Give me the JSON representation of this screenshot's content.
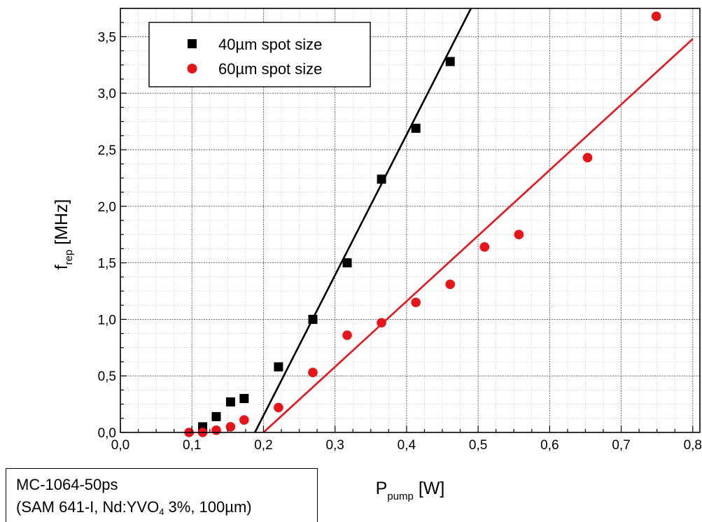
{
  "chart_data": {
    "type": "scatter",
    "xlabel_main": "P",
    "xlabel_sub": "pump",
    "xlabel_unit": " [W]",
    "ylabel_main": "f",
    "ylabel_sub": "rep",
    "ylabel_unit": " [MHz]",
    "xlim": [
      0.0,
      0.81
    ],
    "ylim": [
      0.0,
      3.75
    ],
    "xticks": [
      "0,0",
      "0,1",
      "0,2",
      "0,3",
      "0,4",
      "0,5",
      "0,6",
      "0,7",
      "0,8"
    ],
    "yticks": [
      "0,0",
      "0,5",
      "1,0",
      "1,5",
      "2,0",
      "2,5",
      "3,0",
      "3,5"
    ],
    "grid": true,
    "legend_position": "top-left",
    "series": [
      {
        "name": "40µm spot size",
        "color": "#000000",
        "marker": "square",
        "points": [
          {
            "x": 0.115,
            "y": 0.05
          },
          {
            "x": 0.134,
            "y": 0.14
          },
          {
            "x": 0.154,
            "y": 0.27
          },
          {
            "x": 0.173,
            "y": 0.3
          },
          {
            "x": 0.221,
            "y": 0.58
          },
          {
            "x": 0.269,
            "y": 1.0
          },
          {
            "x": 0.317,
            "y": 1.5
          },
          {
            "x": 0.365,
            "y": 2.24
          },
          {
            "x": 0.413,
            "y": 2.69
          },
          {
            "x": 0.461,
            "y": 3.28
          }
        ],
        "fit": {
          "x": [
            0.188,
            0.49
          ],
          "y": [
            0.0,
            3.75
          ]
        }
      },
      {
        "name": "60µm spot size",
        "color": "#e8141a",
        "marker": "circle",
        "points": [
          {
            "x": 0.096,
            "y": 0.0
          },
          {
            "x": 0.115,
            "y": 0.0
          },
          {
            "x": 0.134,
            "y": 0.02
          },
          {
            "x": 0.154,
            "y": 0.05
          },
          {
            "x": 0.173,
            "y": 0.11
          },
          {
            "x": 0.221,
            "y": 0.22
          },
          {
            "x": 0.269,
            "y": 0.53
          },
          {
            "x": 0.317,
            "y": 0.86
          },
          {
            "x": 0.365,
            "y": 0.97
          },
          {
            "x": 0.413,
            "y": 1.15
          },
          {
            "x": 0.461,
            "y": 1.31
          },
          {
            "x": 0.509,
            "y": 1.64
          },
          {
            "x": 0.557,
            "y": 1.75
          },
          {
            "x": 0.653,
            "y": 2.43
          },
          {
            "x": 0.749,
            "y": 3.68
          }
        ],
        "fit": {
          "x": [
            0.2,
            0.8
          ],
          "y": [
            0.0,
            3.48
          ]
        }
      }
    ]
  },
  "note": {
    "line1": "MC-1064-50ps",
    "line2_pre": "(SAM 641-I, Nd:YVO",
    "line2_sub": "4",
    "line2_post": " 3%, 100µm)"
  }
}
